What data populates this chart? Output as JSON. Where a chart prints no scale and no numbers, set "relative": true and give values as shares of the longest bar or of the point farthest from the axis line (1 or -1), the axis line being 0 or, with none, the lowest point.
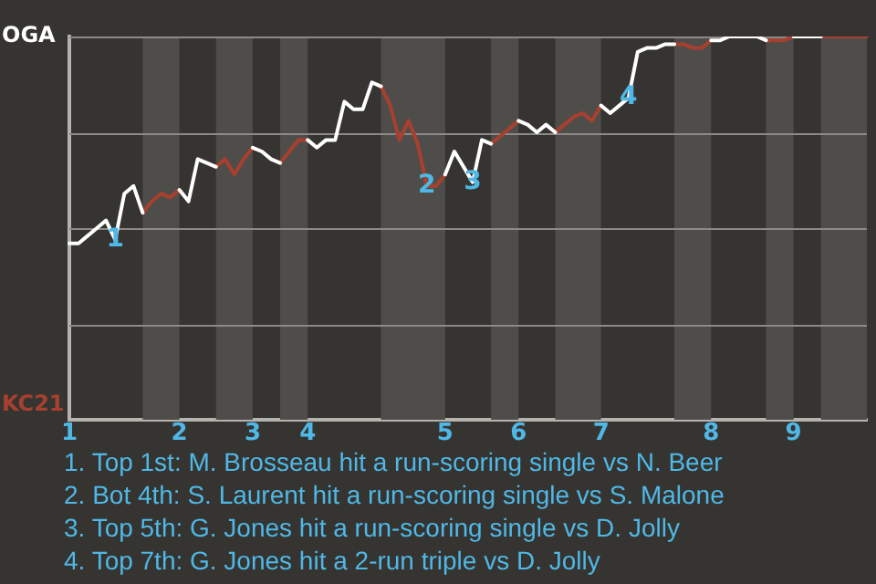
{
  "chart_data": {
    "type": "line",
    "categories": [
      "1",
      null,
      null,
      null,
      null,
      null,
      null,
      null,
      null,
      null,
      null,
      null,
      "2",
      null,
      null,
      null,
      null,
      null,
      null,
      null,
      "3",
      null,
      null,
      null,
      null,
      null,
      "4",
      null,
      null,
      null,
      null,
      null,
      null,
      null,
      null,
      null,
      null,
      null,
      null,
      null,
      null,
      "5",
      null,
      null,
      null,
      null,
      null,
      null,
      null,
      "6",
      null,
      null,
      null,
      null,
      null,
      null,
      null,
      null,
      "7",
      null,
      null,
      null,
      null,
      null,
      null,
      null,
      null,
      null,
      null,
      null,
      "8",
      null,
      null,
      null,
      null,
      null,
      null,
      null,
      null,
      "9",
      null,
      null,
      null,
      null,
      null,
      null,
      null,
      null
    ],
    "series": [
      {
        "name": "OGA",
        "color": "#ffffff",
        "values": [
          0.46,
          0.46,
          0.48,
          0.5,
          0.52,
          0.47,
          0.59,
          0.61,
          0.54,
          null,
          null,
          null,
          0.6,
          0.57,
          0.68,
          0.67,
          0.66,
          null,
          null,
          null,
          0.71,
          0.7,
          0.68,
          0.67,
          null,
          null,
          0.73,
          0.71,
          0.73,
          0.73,
          0.83,
          0.81,
          0.81,
          0.88,
          0.87,
          null,
          null,
          null,
          null,
          null,
          null,
          0.64,
          0.7,
          0.66,
          0.62,
          0.73,
          0.72,
          null,
          null,
          0.78,
          0.77,
          0.75,
          0.77,
          0.75,
          null,
          null,
          null,
          null,
          0.82,
          0.8,
          0.82,
          0.84,
          0.96,
          0.97,
          0.97,
          0.98,
          0.98,
          null,
          null,
          null,
          0.99,
          0.99,
          1,
          1,
          1,
          1,
          0.99,
          null,
          null,
          1,
          1,
          1,
          1,
          null,
          null,
          null,
          null,
          null
        ]
      },
      {
        "name": "KC21",
        "color": "#a8402f",
        "values": [
          null,
          null,
          null,
          null,
          null,
          null,
          null,
          null,
          0.54,
          0.57,
          0.59,
          0.58,
          0.6,
          null,
          null,
          null,
          0.66,
          0.68,
          0.64,
          0.68,
          0.71,
          null,
          null,
          0.67,
          0.7,
          0.73,
          0.73,
          null,
          null,
          null,
          null,
          null,
          null,
          null,
          0.87,
          0.82,
          0.73,
          0.78,
          0.72,
          0.61,
          0.61,
          0.64,
          null,
          null,
          null,
          null,
          0.72,
          0.74,
          0.76,
          0.78,
          null,
          null,
          null,
          0.75,
          0.77,
          0.79,
          0.8,
          0.78,
          0.82,
          null,
          null,
          null,
          null,
          null,
          null,
          null,
          0.98,
          0.98,
          0.97,
          0.97,
          0.99,
          null,
          null,
          null,
          null,
          null,
          0.99,
          0.99,
          0.99,
          1,
          null,
          null,
          1,
          1,
          1,
          1,
          1,
          1
        ]
      }
    ],
    "relative": true,
    "grid": "y",
    "legend": false,
    "marker": "none",
    "line_style": "solid",
    "annotations": [
      {
        "text": "1",
        "y": 0.47
      },
      {
        "text": "2",
        "y": 0.61
      },
      {
        "text": "3",
        "y": 0.62
      },
      {
        "text": "4",
        "y": 0.84
      },
      "1. Top 1st: M. Brosseau hit a run-scoring single vs N. Beer",
      "2. Bot 4th: S. Laurent hit a run-scoring single vs S. Malone",
      "3. Top 5th: G. Jones hit a run-scoring single vs D. Jolly",
      "4. Top 7th: G. Jones hit a 2-run triple vs D. Jolly"
    ]
  }
}
